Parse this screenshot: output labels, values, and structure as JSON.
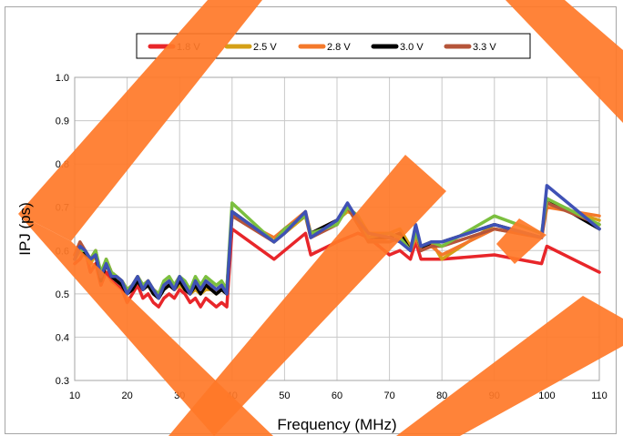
{
  "chart_data": {
    "type": "line",
    "title": "",
    "xlabel": "Frequency (MHz)",
    "ylabel": "IPJ (ps)",
    "xlim": [
      10,
      110
    ],
    "ylim": [
      0.3,
      1.0
    ],
    "xticks": [
      10,
      20,
      30,
      40,
      50,
      60,
      70,
      80,
      90,
      100,
      110
    ],
    "yticks": [
      0.3,
      0.4,
      0.5,
      0.6,
      0.7,
      0.8,
      0.9,
      1.0
    ],
    "grid": true,
    "legend_position": "top",
    "x": [
      10,
      11,
      12,
      13,
      14,
      15,
      16,
      17,
      18,
      19,
      20,
      21,
      22,
      23,
      24,
      25,
      26,
      27,
      28,
      29,
      30,
      31,
      32,
      33,
      34,
      35,
      36,
      37,
      38,
      39,
      40,
      48,
      50,
      54,
      55,
      60,
      62,
      64,
      66,
      70,
      72,
      74,
      75,
      76,
      78,
      80,
      90,
      99,
      100,
      110
    ],
    "series": [
      {
        "name": "1.8 V",
        "color": "#e8262a",
        "values": [
          0.57,
          0.58,
          0.6,
          0.55,
          0.57,
          0.52,
          0.55,
          0.53,
          0.52,
          0.51,
          0.48,
          0.5,
          0.52,
          0.49,
          0.5,
          0.48,
          0.47,
          0.49,
          0.5,
          0.49,
          0.51,
          0.5,
          0.48,
          0.49,
          0.47,
          0.49,
          0.48,
          0.47,
          0.48,
          0.47,
          0.65,
          0.58,
          0.6,
          0.64,
          0.59,
          0.62,
          0.63,
          0.64,
          0.63,
          0.59,
          0.6,
          0.58,
          0.62,
          0.58,
          0.58,
          0.58,
          0.59,
          0.57,
          0.61,
          0.55
        ]
      },
      {
        "name": "2.5 V",
        "color": "#d4a017",
        "values": [
          0.58,
          0.6,
          0.59,
          0.57,
          0.59,
          0.53,
          0.57,
          0.54,
          0.53,
          0.52,
          0.5,
          0.51,
          0.53,
          0.51,
          0.52,
          0.5,
          0.49,
          0.51,
          0.52,
          0.51,
          0.52,
          0.51,
          0.5,
          0.51,
          0.5,
          0.51,
          0.51,
          0.5,
          0.51,
          0.5,
          0.69,
          0.62,
          0.64,
          0.68,
          0.63,
          0.67,
          0.69,
          0.68,
          0.64,
          0.64,
          0.65,
          0.61,
          0.64,
          0.61,
          0.62,
          0.58,
          0.66,
          0.63,
          0.71,
          0.67
        ]
      },
      {
        "name": "2.8 V",
        "color": "#f4792b",
        "values": [
          0.59,
          0.61,
          0.6,
          0.58,
          0.6,
          0.54,
          0.58,
          0.55,
          0.54,
          0.53,
          0.51,
          0.52,
          0.54,
          0.52,
          0.53,
          0.51,
          0.5,
          0.52,
          0.53,
          0.52,
          0.53,
          0.52,
          0.51,
          0.52,
          0.51,
          0.52,
          0.52,
          0.51,
          0.52,
          0.51,
          0.68,
          0.63,
          0.65,
          0.69,
          0.64,
          0.67,
          0.7,
          0.68,
          0.62,
          0.63,
          0.64,
          0.6,
          0.63,
          0.6,
          0.61,
          0.59,
          0.65,
          0.63,
          0.7,
          0.68
        ]
      },
      {
        "name": "3.0 V",
        "color": "#000000",
        "values": [
          0.58,
          0.61,
          0.59,
          0.58,
          0.59,
          0.53,
          0.57,
          0.54,
          0.53,
          0.52,
          0.5,
          0.51,
          0.53,
          0.51,
          0.52,
          0.5,
          0.49,
          0.51,
          0.52,
          0.51,
          0.53,
          0.51,
          0.5,
          0.52,
          0.5,
          0.52,
          0.51,
          0.5,
          0.51,
          0.5,
          0.69,
          0.62,
          0.65,
          0.68,
          0.64,
          0.67,
          0.7,
          0.67,
          0.63,
          0.63,
          0.64,
          0.6,
          0.65,
          0.6,
          0.62,
          0.62,
          0.66,
          0.63,
          0.72,
          0.65
        ]
      },
      {
        "name": "3.3 V",
        "color": "#b5553a",
        "values": [
          0.59,
          0.62,
          0.6,
          0.58,
          0.6,
          0.54,
          0.58,
          0.55,
          0.54,
          0.53,
          0.51,
          0.52,
          0.54,
          0.52,
          0.53,
          0.51,
          0.5,
          0.52,
          0.53,
          0.52,
          0.54,
          0.52,
          0.51,
          0.53,
          0.51,
          0.53,
          0.52,
          0.51,
          0.52,
          0.51,
          0.68,
          0.62,
          0.65,
          0.68,
          0.63,
          0.66,
          0.7,
          0.66,
          0.62,
          0.62,
          0.63,
          0.6,
          0.65,
          0.6,
          0.61,
          0.61,
          0.65,
          0.63,
          0.71,
          0.66
        ]
      },
      {
        "name": "",
        "color": "#7bbf3f",
        "values": [
          0.58,
          0.6,
          0.6,
          0.58,
          0.6,
          0.55,
          0.58,
          0.55,
          0.54,
          0.53,
          0.51,
          0.52,
          0.54,
          0.52,
          0.53,
          0.51,
          0.5,
          0.53,
          0.54,
          0.52,
          0.54,
          0.53,
          0.51,
          0.54,
          0.52,
          0.54,
          0.53,
          0.52,
          0.53,
          0.51,
          0.71,
          0.62,
          0.65,
          0.68,
          0.64,
          0.66,
          0.7,
          0.68,
          0.63,
          0.64,
          0.63,
          0.6,
          0.64,
          0.61,
          0.62,
          0.61,
          0.68,
          0.64,
          0.72,
          0.66
        ]
      },
      {
        "name": "",
        "color": "#3f51b5",
        "values": [
          0.58,
          0.61,
          0.6,
          0.58,
          0.59,
          0.54,
          0.57,
          0.54,
          0.54,
          0.53,
          0.5,
          0.52,
          0.54,
          0.51,
          0.53,
          0.51,
          0.49,
          0.52,
          0.53,
          0.51,
          0.54,
          0.52,
          0.5,
          0.53,
          0.51,
          0.53,
          0.52,
          0.51,
          0.52,
          0.5,
          0.69,
          0.62,
          0.64,
          0.69,
          0.63,
          0.67,
          0.71,
          0.67,
          0.64,
          0.63,
          0.62,
          0.6,
          0.66,
          0.61,
          0.62,
          0.62,
          0.66,
          0.63,
          0.75,
          0.65
        ]
      }
    ]
  }
}
